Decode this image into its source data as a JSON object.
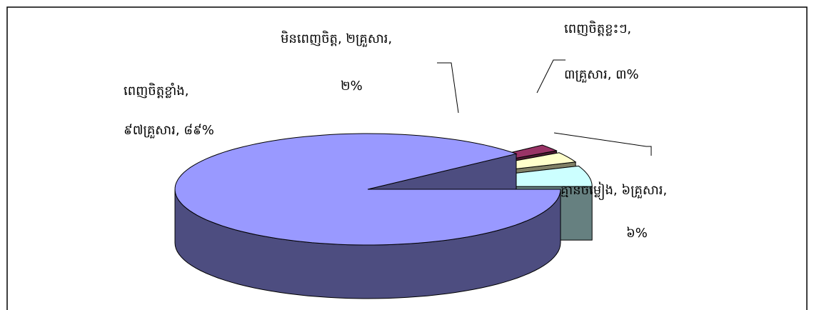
{
  "chart_data": {
    "type": "pie3d",
    "values": [
      89,
      2,
      3,
      6
    ],
    "value_labels": [
      [
        "ពេញចិត្តខ្លាំង,",
        "៩៧គ្រួសារ, ៨៩%"
      ],
      [
        "មិនពេញចិត្ត, ២គ្រួសារ,",
        "២%"
      ],
      [
        "ពេញចិត្តខ្លះៗ,",
        "៣គ្រួសារ, ៣%"
      ],
      [
        "គ្មានចម្លៀង, ៦គ្រួសារ,",
        "៦%"
      ]
    ],
    "colors": [
      "#9999ff",
      "#993366",
      "#ffffcc",
      "#ccffff"
    ]
  }
}
